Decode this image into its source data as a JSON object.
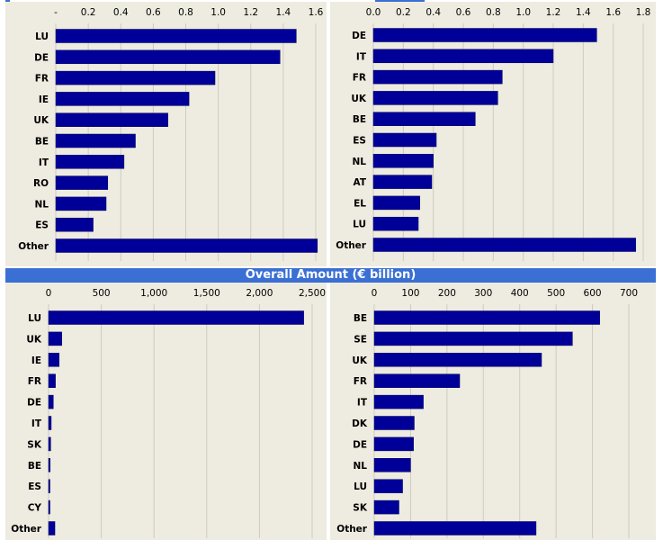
{
  "section_title": "Overall Amount (€ billion)",
  "colors": {
    "bar": "#000099",
    "panel_bg": "#eeebe0",
    "band": "#3a6fd3",
    "grid": "#cfcbbf"
  },
  "chart_data": [
    {
      "type": "bar",
      "orientation": "horizontal",
      "categories": [
        "LU",
        "DE",
        "FR",
        "IE",
        "UK",
        "BE",
        "IT",
        "RO",
        "NL",
        "ES",
        "Other"
      ],
      "values": [
        1.48,
        1.38,
        0.98,
        0.82,
        0.69,
        0.49,
        0.42,
        0.32,
        0.31,
        0.23,
        1.61
      ],
      "xlim": [
        0,
        1.6
      ],
      "ticks": [
        0,
        0.2,
        0.4,
        0.6,
        0.8,
        1.0,
        1.2,
        1.4,
        1.6
      ],
      "tick_labels": [
        "-",
        "0.2",
        "0.4",
        "0.6",
        "0.8",
        "1.0",
        "1.2",
        "1.4",
        "1.6"
      ],
      "grid": true
    },
    {
      "type": "bar",
      "orientation": "horizontal",
      "categories": [
        "DE",
        "IT",
        "FR",
        "UK",
        "BE",
        "ES",
        "NL",
        "AT",
        "EL",
        "LU",
        "Other"
      ],
      "values": [
        1.49,
        1.2,
        0.86,
        0.83,
        0.68,
        0.42,
        0.4,
        0.39,
        0.31,
        0.3,
        1.75
      ],
      "xlim": [
        0,
        1.8
      ],
      "ticks": [
        0,
        0.2,
        0.4,
        0.6,
        0.8,
        1.0,
        1.2,
        1.4,
        1.6,
        1.8
      ],
      "tick_labels": [
        "0.0",
        "0.2",
        "0.4",
        "0.6",
        "0.8",
        "1.0",
        "1.2",
        "1.4",
        "1.6",
        "1.8"
      ],
      "grid": true
    },
    {
      "type": "bar",
      "orientation": "horizontal",
      "categories": [
        "LU",
        "UK",
        "IE",
        "FR",
        "DE",
        "IT",
        "SK",
        "BE",
        "ES",
        "CY",
        "Other"
      ],
      "values": [
        2420,
        125,
        100,
        65,
        45,
        25,
        20,
        15,
        12,
        10,
        60
      ],
      "xlim": [
        0,
        2500
      ],
      "ticks": [
        0,
        500,
        1000,
        1500,
        2000,
        2500
      ],
      "tick_labels": [
        "0",
        "500",
        "1,000",
        "1,500",
        "2,000",
        "2,500"
      ],
      "grid": true
    },
    {
      "type": "bar",
      "orientation": "horizontal",
      "categories": [
        "BE",
        "SE",
        "UK",
        "FR",
        "IT",
        "DK",
        "DE",
        "NL",
        "LU",
        "SK",
        "Other"
      ],
      "values": [
        620,
        545,
        460,
        235,
        135,
        110,
        108,
        100,
        78,
        68,
        445
      ],
      "xlim": [
        0,
        700
      ],
      "ticks": [
        0,
        100,
        200,
        300,
        400,
        500,
        600,
        700
      ],
      "tick_labels": [
        "0",
        "100",
        "200",
        "300",
        "400",
        "500",
        "600",
        "700"
      ],
      "grid": true
    }
  ]
}
